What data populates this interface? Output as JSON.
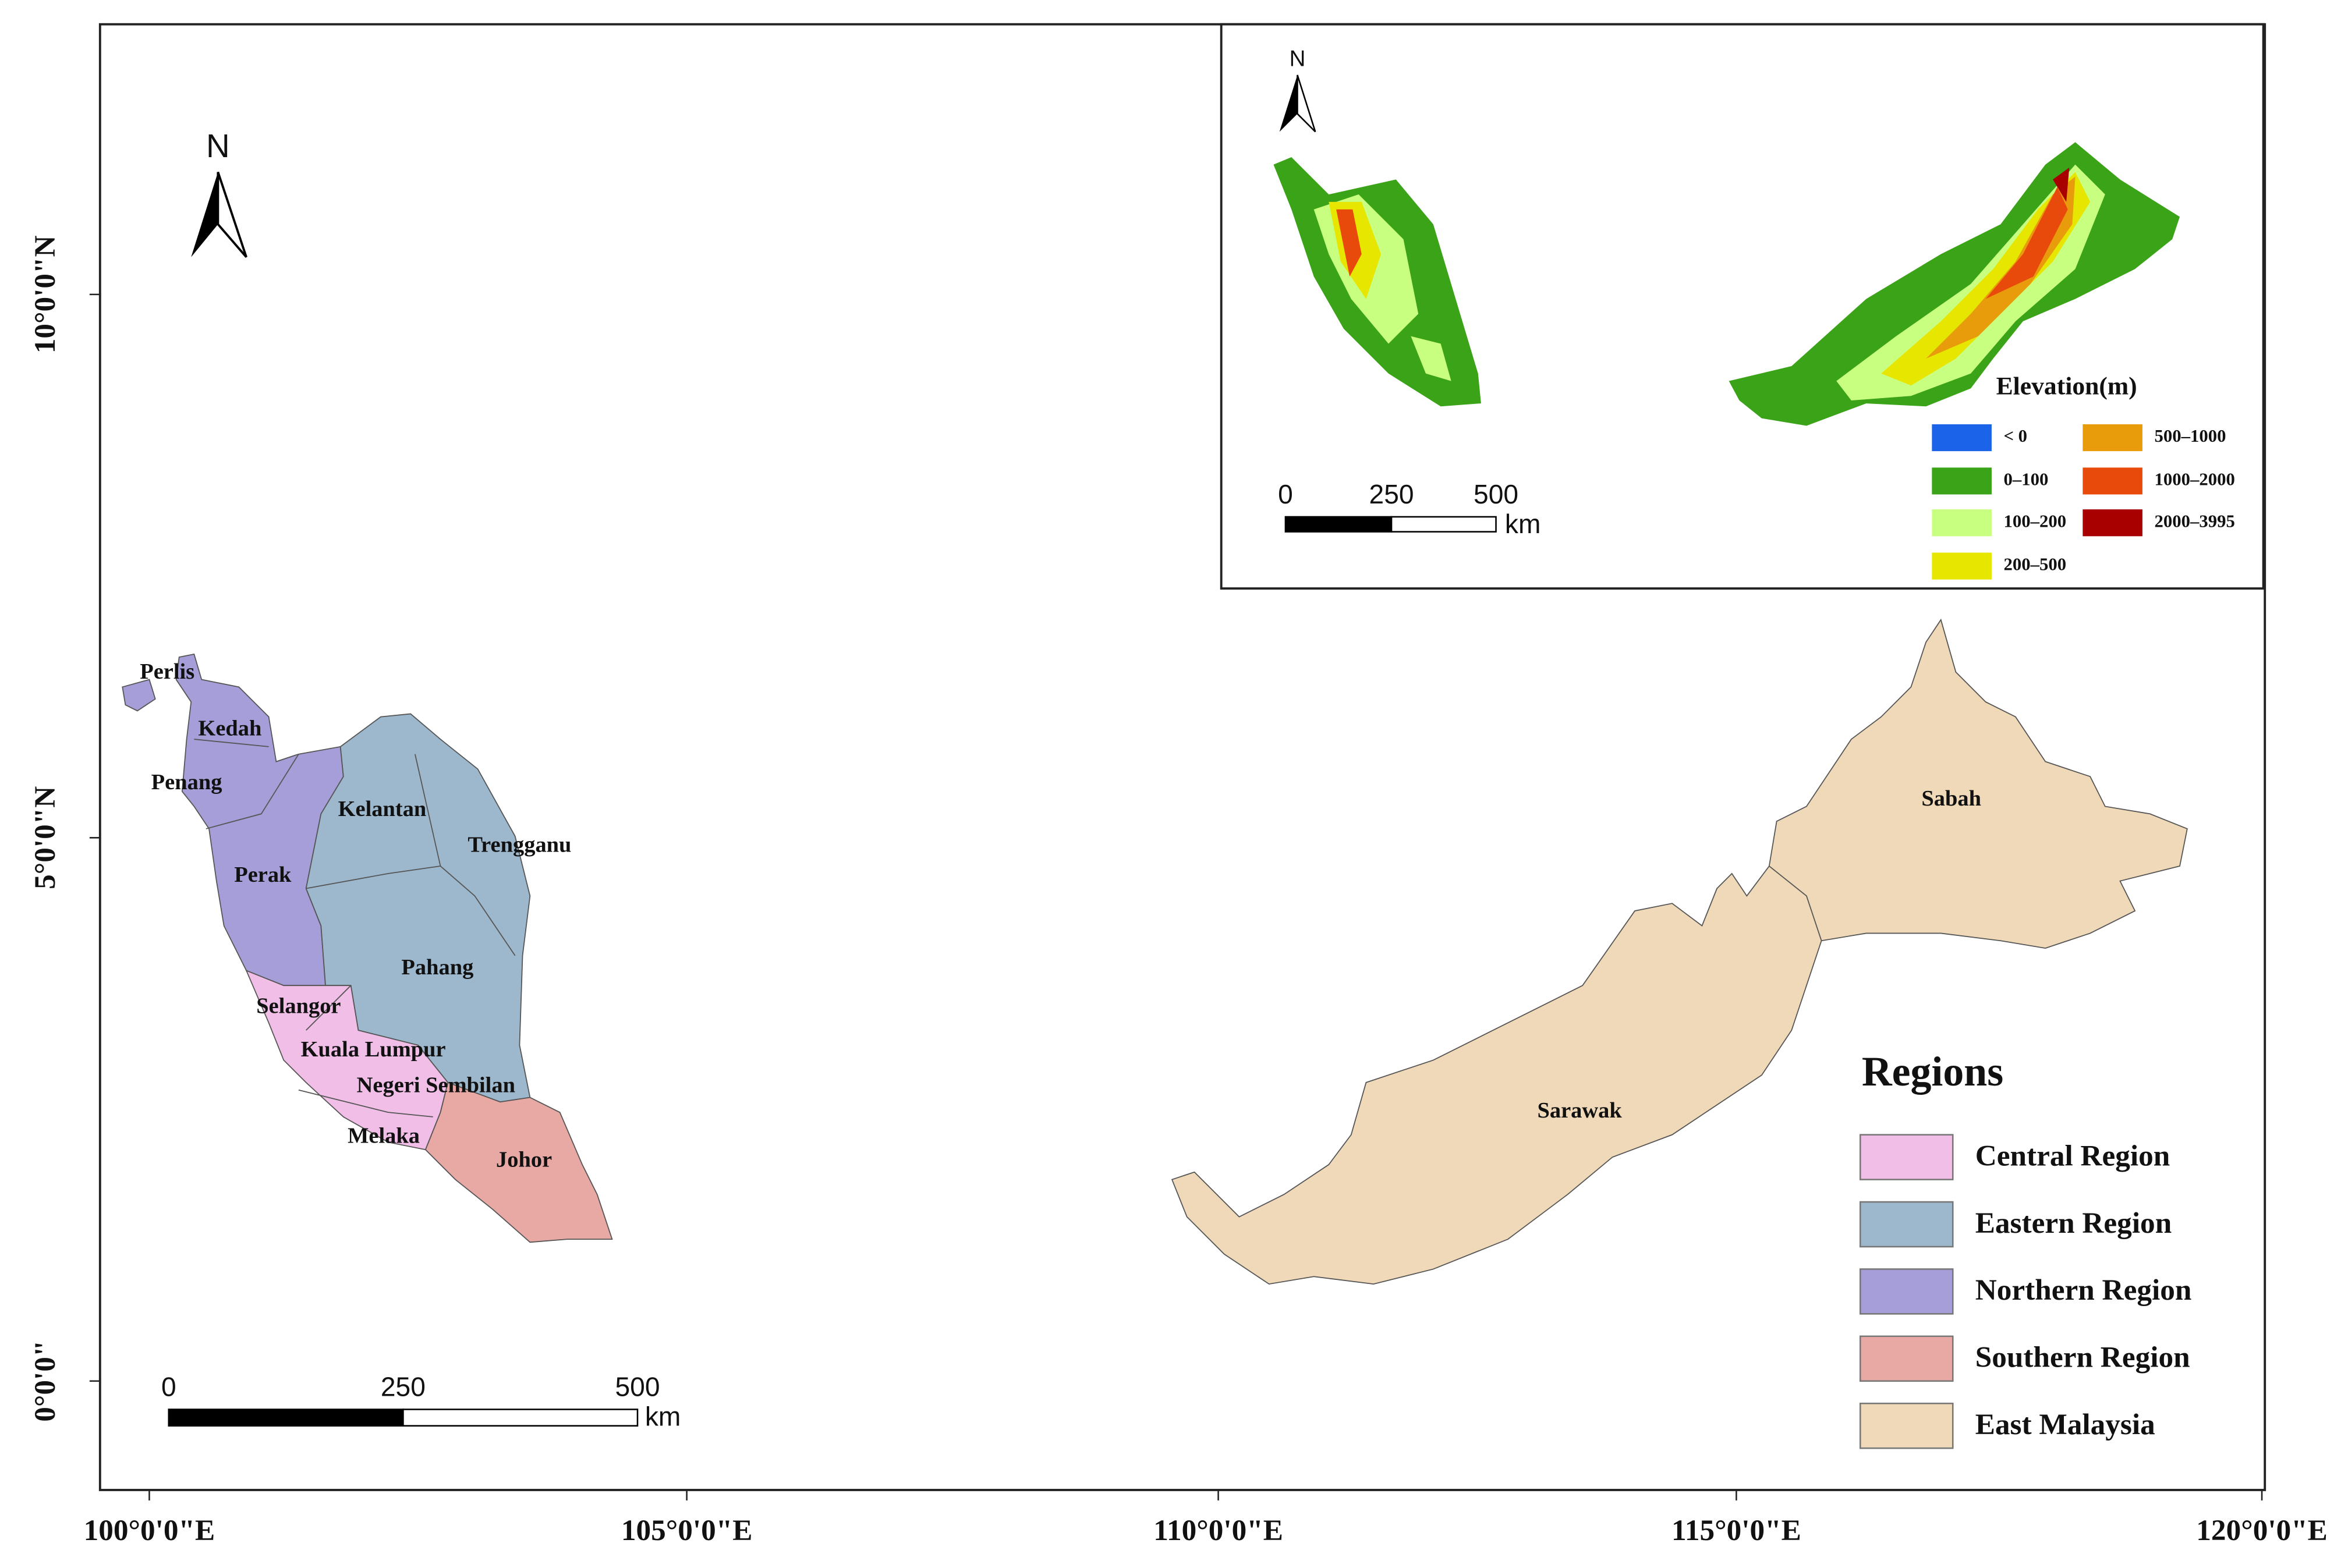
{
  "map": {
    "north_label": "N",
    "x_ticks": [
      "100°0'0\"E",
      "105°0'0\"E",
      "110°0'0\"E",
      "115°0'0\"E",
      "120°0'0\"E"
    ],
    "y_ticks": [
      "0°0'0\"",
      "5°0'0\"N",
      "10°0'0\"N"
    ],
    "states": [
      "Perlis",
      "Kedah",
      "Penang",
      "Kelantan",
      "Trengganu",
      "Perak",
      "Pahang",
      "Selangor",
      "Kuala Lumpur",
      "Negeri Sembilan",
      "Melaka",
      "Johor",
      "Sarawak",
      "Sabah"
    ],
    "scale_bar": {
      "labels": [
        "0",
        "250",
        "500"
      ],
      "unit": "km"
    },
    "legend": {
      "title": "Regions",
      "items": [
        "Central Region",
        "Eastern Region",
        "Northern Region",
        "Southern Region",
        "East Malaysia"
      ]
    }
  },
  "inset": {
    "north_label": "N",
    "scale_bar": {
      "labels": [
        "0",
        "250",
        "500"
      ],
      "unit": "km"
    },
    "legend": {
      "title": "Elevation(m)",
      "items": [
        "< 0",
        "0–100",
        "100–200",
        "200–500",
        "500–1000",
        "1000–2000",
        "2000–3995"
      ]
    }
  }
}
